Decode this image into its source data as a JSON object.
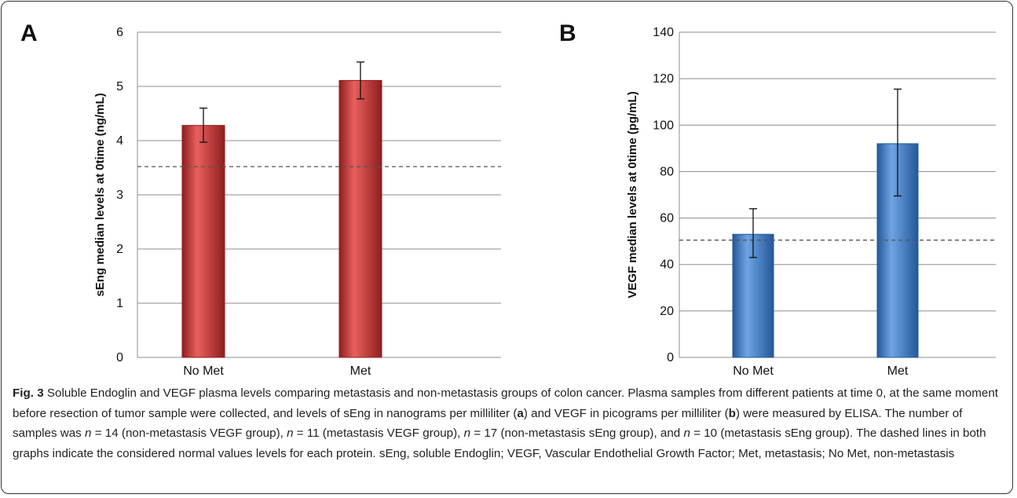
{
  "chart_data": [
    {
      "type": "bar",
      "panel": "A",
      "categories": [
        "No Met",
        "Met"
      ],
      "values": [
        4.28,
        5.11
      ],
      "error_high": [
        4.6,
        5.45
      ],
      "error_low": [
        3.97,
        4.77
      ],
      "reference_line": 3.52,
      "ylabel": "sEng median levels at 0time  (ng/mL)",
      "ylim": [
        0,
        6
      ],
      "yticks": [
        0,
        1,
        2,
        3,
        4,
        5,
        6
      ],
      "grid": true,
      "bar_color": "#c62e2e",
      "bar_color_light": "#e8605e",
      "bar_color_dark": "#8f1d1d"
    },
    {
      "type": "bar",
      "panel": "B",
      "categories": [
        "No Met",
        "Met"
      ],
      "values": [
        53,
        92
      ],
      "error_high": [
        64,
        115.5
      ],
      "error_low": [
        43,
        69.5
      ],
      "reference_line": 50.5,
      "ylabel": "VEGF median levels at 0time  (pg/mL)",
      "ylim": [
        0,
        140
      ],
      "yticks": [
        0,
        20,
        40,
        60,
        80,
        100,
        120,
        140
      ],
      "grid": true,
      "bar_color": "#3a78c6",
      "bar_color_light": "#6ea4e4",
      "bar_color_dark": "#24579a"
    }
  ],
  "caption": {
    "fig_label": "Fig. 3",
    "text_1": " Soluble Endoglin and VEGF plasma levels comparing metastasis and non-metastasis groups of colon cancer. Plasma samples from different patients at time 0, at the same moment before resection of tumor sample were collected, and levels of sEng in nanograms per milliliter (",
    "bold_a": "a",
    "text_2": ") and VEGF in picograms per milliliter (",
    "bold_b": "b",
    "text_3": ") were measured by ELISA. The number of samples was ",
    "n_1": "n",
    "text_4": " = 14 (non-metastasis VEGF group), ",
    "n_2": "n",
    "text_5": " = 11 (metastasis VEGF group), ",
    "n_3": "n",
    "text_6": " = 17 (non-metastasis sEng group), and ",
    "n_4": "n",
    "text_7": " = 10 (metastasis sEng group). The dashed lines in both graphs indicate the considered normal values levels for each protein. sEng, soluble Endoglin; VEGF, Vascular Endothelial Growth Factor; Met, metastasis; No Met, non-metastasis"
  }
}
